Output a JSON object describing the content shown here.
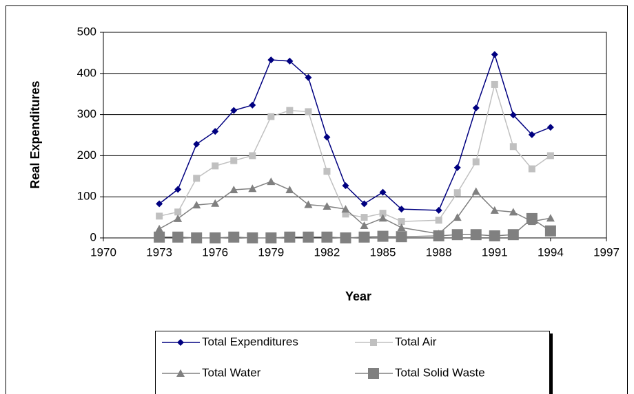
{
  "chart_data": {
    "type": "line",
    "xlabel": "Year",
    "ylabel": "Real Expenditures",
    "x": [
      1973,
      1974,
      1975,
      1976,
      1977,
      1978,
      1979,
      1980,
      1981,
      1982,
      1983,
      1984,
      1985,
      1986,
      1988,
      1989,
      1990,
      1991,
      1992,
      1993,
      1994
    ],
    "series": [
      {
        "name": "Total Expenditures",
        "color": "#000080",
        "marker": "diamond",
        "values": [
          83,
          118,
          228,
          259,
          310,
          323,
          433,
          430,
          390,
          245,
          127,
          83,
          111,
          70,
          67,
          171,
          316,
          446,
          299,
          251,
          269
        ]
      },
      {
        "name": "Total Air",
        "color": "#c0c0c0",
        "marker": "square",
        "values": [
          53,
          63,
          145,
          175,
          188,
          200,
          295,
          310,
          307,
          162,
          58,
          50,
          60,
          40,
          43,
          110,
          185,
          373,
          222,
          168,
          200
        ]
      },
      {
        "name": "Total Water",
        "color": "#808080",
        "marker": "triangle",
        "values": [
          22,
          47,
          80,
          84,
          117,
          120,
          137,
          117,
          81,
          77,
          70,
          30,
          48,
          25,
          10,
          50,
          113,
          67,
          63,
          40,
          48
        ]
      },
      {
        "name": "Total Solid Waste",
        "color": "#808080",
        "marker": "bigsquare",
        "values": [
          2,
          2,
          0,
          0,
          2,
          0,
          0,
          2,
          2,
          2,
          0,
          2,
          4,
          3,
          5,
          8,
          8,
          5,
          8,
          47,
          17
        ]
      }
    ],
    "xlim": [
      1970,
      1997
    ],
    "xticks": [
      1970,
      1973,
      1976,
      1979,
      1982,
      1985,
      1988,
      1991,
      1994,
      1997
    ],
    "ylim": [
      0,
      500
    ],
    "yticks": [
      0,
      100,
      200,
      300,
      400,
      500
    ],
    "grid": true,
    "legend": "bottom"
  }
}
